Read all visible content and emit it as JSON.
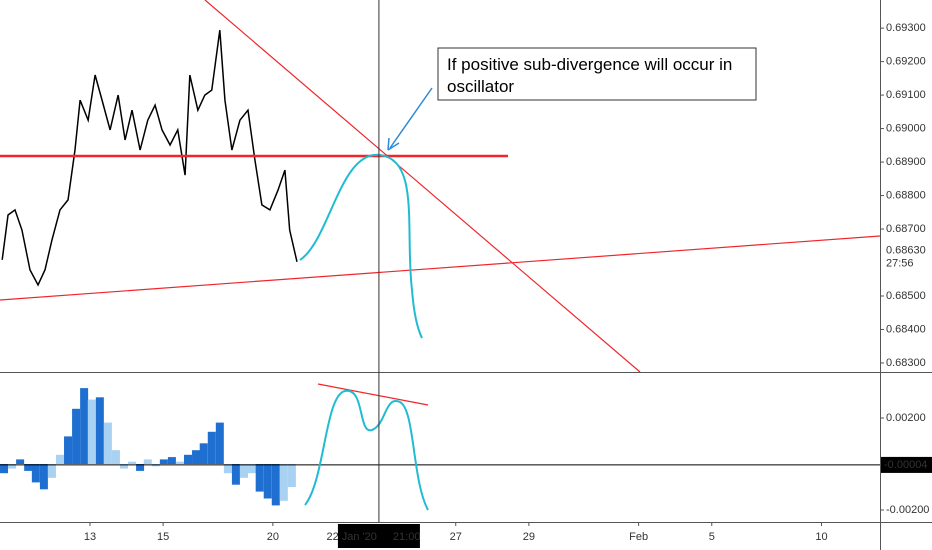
{
  "chart_data": [
    {
      "type": "line",
      "color": "#000000",
      "xlim": [
        -2.46,
        21.6
      ],
      "ylim": [
        0.68273,
        0.69384
      ],
      "x": [
        -2.4,
        -2.24,
        -2.05,
        -1.86,
        -1.64,
        -1.42,
        -1.23,
        -1.04,
        -0.82,
        -0.6,
        -0.41,
        -0.27,
        -0.05,
        0.14,
        0.33,
        0.55,
        0.77,
        0.96,
        1.15,
        1.37,
        1.58,
        1.78,
        1.97,
        2.19,
        2.4,
        2.6,
        2.73,
        2.95,
        3.14,
        3.33,
        3.55,
        3.69,
        3.88,
        4.1,
        4.32,
        4.51,
        4.7,
        4.92,
        5.14,
        5.33,
        5.46,
        5.66
      ],
      "values": [
        0.68608,
        0.68742,
        0.68757,
        0.68697,
        0.68578,
        0.68533,
        0.68578,
        0.68667,
        0.68757,
        0.68787,
        0.68936,
        0.69085,
        0.69025,
        0.6916,
        0.69085,
        0.68996,
        0.691,
        0.68966,
        0.69055,
        0.68936,
        0.69025,
        0.6907,
        0.68996,
        0.68951,
        0.68996,
        0.68861,
        0.6916,
        0.69055,
        0.691,
        0.69115,
        0.69294,
        0.69085,
        0.68936,
        0.69025,
        0.69055,
        0.68906,
        0.68772,
        0.68757,
        0.68816,
        0.68876,
        0.68697,
        0.68602
      ],
      "yticks": [
        {
          "value": 0.693,
          "label": "0.69300"
        },
        {
          "value": 0.692,
          "label": "0.69200"
        },
        {
          "value": 0.691,
          "label": "0.69100"
        },
        {
          "value": 0.69,
          "label": "0.69000"
        },
        {
          "value": 0.689,
          "label": "0.68900"
        },
        {
          "value": 0.688,
          "label": "0.68800"
        },
        {
          "value": 0.687,
          "label": "0.68700"
        },
        {
          "value": 0.685,
          "label": "0.68500"
        },
        {
          "value": 0.684,
          "label": "0.68400"
        },
        {
          "value": 0.683,
          "label": "0.68300"
        }
      ],
      "last_price": {
        "value": 0.6863,
        "label": "0.68630",
        "countdown": "27:56"
      },
      "annotation": "If positive sub-divergence will occur in oscillator"
    },
    {
      "type": "bar",
      "colors": [
        "#1e6fd0",
        "#a9d1f2"
      ],
      "xlim": [
        -2.46,
        21.6
      ],
      "ylim": [
        -0.002522,
        0.003957
      ],
      "x": [
        -2.35,
        -2.13,
        -1.91,
        -1.69,
        -1.48,
        -1.26,
        -1.04,
        -0.82,
        -0.6,
        -0.38,
        -0.16,
        0.05,
        0.27,
        0.49,
        0.71,
        0.93,
        1.15,
        1.37,
        1.58,
        1.8,
        2.02,
        2.24,
        2.46,
        2.68,
        2.9,
        3.11,
        3.33,
        3.55,
        3.77,
        3.99,
        4.21,
        4.43,
        4.64,
        4.86,
        5.08,
        5.3,
        5.52
      ],
      "values": [
        -0.0004,
        -0.0002,
        0.0002,
        -0.0003,
        -0.0008,
        -0.0011,
        -0.0006,
        0.0004,
        0.0012,
        0.0024,
        0.0033,
        0.0028,
        0.0029,
        0.0018,
        0.0006,
        -0.0002,
        0.0001,
        -0.0003,
        0.0002,
        -0.0001,
        0.0002,
        0.0003,
        0.0001,
        0.0004,
        0.0006,
        0.0009,
        0.0014,
        0.0018,
        -0.0004,
        -0.0009,
        -0.0006,
        -0.0004,
        -0.0012,
        -0.0015,
        -0.0018,
        -0.0016,
        -0.001
      ],
      "yticks": [
        {
          "value": 0.002,
          "label": "0.00200"
        },
        {
          "value": -0.002,
          "label": "-0.00200"
        }
      ],
      "last_value": {
        "value": -4e-05,
        "label": "-0.00004"
      },
      "xticks": [
        {
          "value": 0,
          "label": "13"
        },
        {
          "value": 2,
          "label": "15"
        },
        {
          "value": 5,
          "label": "20"
        },
        {
          "value": 10,
          "label": "27"
        },
        {
          "value": 12,
          "label": "29"
        },
        {
          "value": 15,
          "label": "Feb"
        },
        {
          "value": 17,
          "label": "5"
        },
        {
          "value": 20,
          "label": "10"
        }
      ],
      "cursor": {
        "x": 7.9,
        "date_label": "22 Jan '20",
        "time_label": "21:00"
      }
    }
  ]
}
